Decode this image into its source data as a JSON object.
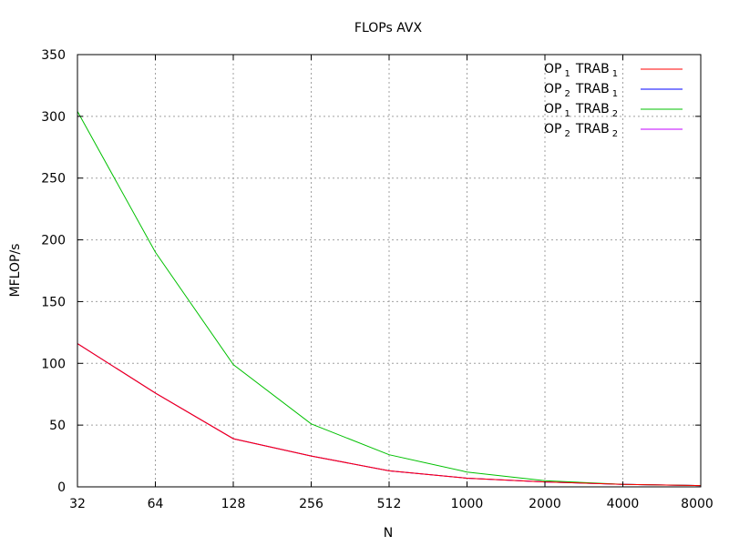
{
  "chart_data": {
    "type": "line",
    "title": "FLOPs AVX",
    "xlabel": "N",
    "ylabel": "MFLOP/s",
    "x_scale": "log2",
    "x": [
      32,
      64,
      128,
      256,
      512,
      1000,
      2000,
      4000,
      8000
    ],
    "x_tick_labels": [
      "32",
      "64",
      "128",
      "256",
      "512",
      "1000",
      "2000",
      "4000",
      "8000"
    ],
    "ylim": [
      0,
      350
    ],
    "y_ticks": [
      0,
      50,
      100,
      150,
      200,
      250,
      300,
      350
    ],
    "grid": true,
    "legend_position": "top-right",
    "series": [
      {
        "label_main": "OP",
        "label_main_sub": "1",
        "label_second": "TRAB",
        "label_second_sub": "1",
        "color": "#ff0000",
        "values": [
          116,
          76,
          39,
          25,
          13,
          7,
          4,
          2,
          1
        ]
      },
      {
        "label_main": "OP",
        "label_main_sub": "2",
        "label_second": "TRAB",
        "label_second_sub": "1",
        "color": "#0000ff",
        "values": [
          116,
          76,
          39,
          25,
          13,
          7,
          4,
          2,
          1
        ]
      },
      {
        "label_main": "OP",
        "label_main_sub": "1",
        "label_second": "TRAB",
        "label_second_sub": "2",
        "color": "#00c000",
        "values": [
          304,
          190,
          99,
          51,
          26,
          12,
          5,
          2,
          1
        ]
      },
      {
        "label_main": "OP",
        "label_main_sub": "2",
        "label_second": "TRAB",
        "label_second_sub": "2",
        "color": "#c000ff",
        "values": [
          116,
          76,
          39,
          25,
          13,
          7,
          4,
          2,
          1
        ]
      }
    ]
  }
}
